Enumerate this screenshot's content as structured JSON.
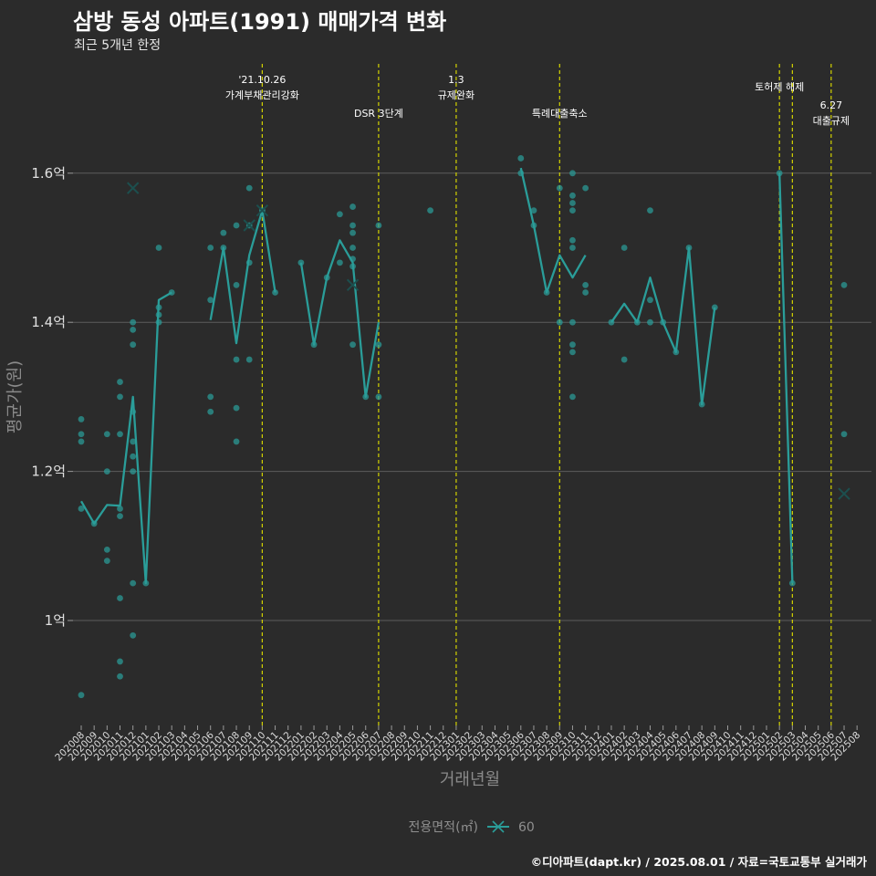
{
  "title": "삼방 동성 아파트(1991) 매매가격 변화",
  "subtitle": "최근 5개년 한정",
  "caption": "©디아파트(dapt.kr) / 2025.08.01 / 자료=국토교통부 실거래가",
  "colors": {
    "background": "#2b2b2b",
    "series": "#2a9d99",
    "event_line": "#d4d400",
    "grid": "#5c5c5c"
  },
  "chart_data": {
    "type": "line",
    "xlabel": "거래년월",
    "ylabel": "평균가(원)",
    "ylim": [
      0.865,
      1.745
    ],
    "y_unit": "억",
    "yticks": [
      {
        "value": 1.0,
        "label": "1억"
      },
      {
        "value": 1.2,
        "label": "1.2억"
      },
      {
        "value": 1.4,
        "label": "1.4억"
      },
      {
        "value": 1.6,
        "label": "1.6억"
      }
    ],
    "x_categories": [
      "202008",
      "202009",
      "202010",
      "202011",
      "202012",
      "202101",
      "202102",
      "202103",
      "202104",
      "202105",
      "202106",
      "202107",
      "202108",
      "202109",
      "202110",
      "202111",
      "202112",
      "202201",
      "202202",
      "202203",
      "202204",
      "202205",
      "202206",
      "202207",
      "202208",
      "202209",
      "202210",
      "202211",
      "202212",
      "202301",
      "202302",
      "202303",
      "202304",
      "202305",
      "202306",
      "202307",
      "202308",
      "202309",
      "202310",
      "202311",
      "202312",
      "202401",
      "202402",
      "202403",
      "202404",
      "202405",
      "202406",
      "202407",
      "202408",
      "202409",
      "202410",
      "202411",
      "202412",
      "202501",
      "202502",
      "202503",
      "202504",
      "202505",
      "202506",
      "202507",
      "202508"
    ],
    "legend": {
      "title": "전용면적(㎡)",
      "entries": [
        "60"
      ]
    },
    "series": [
      {
        "name": "60",
        "line_segments": [
          [
            [
              "202008",
              1.16
            ],
            [
              "202009",
              1.13
            ],
            [
              "202010",
              1.155
            ],
            [
              "202011",
              1.154
            ],
            [
              "202012",
              1.3
            ],
            [
              "202101",
              1.05
            ],
            [
              "202102",
              1.43
            ],
            [
              "202103",
              1.44
            ]
          ],
          [
            [
              "202106",
              1.403
            ],
            [
              "202107",
              1.5
            ],
            [
              "202108",
              1.372
            ],
            [
              "202109",
              1.49
            ],
            [
              "202110",
              1.55
            ],
            [
              "202111",
              1.44
            ]
          ],
          [
            [
              "202201",
              1.48
            ],
            [
              "202202",
              1.37
            ],
            [
              "202203",
              1.46
            ],
            [
              "202204",
              1.51
            ],
            [
              "202205",
              1.48
            ],
            [
              "202206",
              1.3
            ],
            [
              "202207",
              1.4
            ]
          ],
          [
            [
              "202306",
              1.607
            ],
            [
              "202307",
              1.53
            ],
            [
              "202308",
              1.44
            ],
            [
              "202309",
              1.49
            ],
            [
              "202310",
              1.46
            ],
            [
              "202311",
              1.49
            ]
          ],
          [
            [
              "202401",
              1.4
            ],
            [
              "202402",
              1.425
            ],
            [
              "202403",
              1.4
            ],
            [
              "202404",
              1.46
            ],
            [
              "202405",
              1.4
            ],
            [
              "202406",
              1.36
            ],
            [
              "202407",
              1.5
            ],
            [
              "202408",
              1.29
            ],
            [
              "202409",
              1.42
            ]
          ],
          [
            [
              "202502",
              1.6
            ],
            [
              "202503",
              1.05
            ]
          ]
        ],
        "points": [
          [
            "202008",
            1.27
          ],
          [
            "202008",
            1.25
          ],
          [
            "202008",
            1.24
          ],
          [
            "202008",
            1.15
          ],
          [
            "202008",
            0.9
          ],
          [
            "202009",
            1.13
          ],
          [
            "202010",
            1.25
          ],
          [
            "202010",
            1.2
          ],
          [
            "202010",
            1.095
          ],
          [
            "202010",
            1.08
          ],
          [
            "202011",
            1.32
          ],
          [
            "202011",
            1.3
          ],
          [
            "202011",
            1.25
          ],
          [
            "202011",
            1.15
          ],
          [
            "202011",
            1.14
          ],
          [
            "202011",
            1.03
          ],
          [
            "202011",
            0.945
          ],
          [
            "202011",
            0.925
          ],
          [
            "202012",
            1.4
          ],
          [
            "202012",
            1.39
          ],
          [
            "202012",
            1.37
          ],
          [
            "202012",
            1.28
          ],
          [
            "202012",
            1.24
          ],
          [
            "202012",
            1.22
          ],
          [
            "202012",
            1.2
          ],
          [
            "202012",
            1.05
          ],
          [
            "202012",
            0.98
          ],
          [
            "202101",
            1.05
          ],
          [
            "202102",
            1.5
          ],
          [
            "202102",
            1.42
          ],
          [
            "202102",
            1.41
          ],
          [
            "202102",
            1.4
          ],
          [
            "202103",
            1.44
          ],
          [
            "202106",
            1.5
          ],
          [
            "202106",
            1.43
          ],
          [
            "202106",
            1.3
          ],
          [
            "202106",
            1.28
          ],
          [
            "202107",
            1.52
          ],
          [
            "202107",
            1.5
          ],
          [
            "202108",
            1.53
          ],
          [
            "202108",
            1.45
          ],
          [
            "202108",
            1.35
          ],
          [
            "202108",
            1.285
          ],
          [
            "202108",
            1.24
          ],
          [
            "202109",
            1.58
          ],
          [
            "202109",
            1.53
          ],
          [
            "202109",
            1.48
          ],
          [
            "202109",
            1.35
          ],
          [
            "202110",
            1.55
          ],
          [
            "202111",
            1.44
          ],
          [
            "202201",
            1.48
          ],
          [
            "202202",
            1.37
          ],
          [
            "202203",
            1.46
          ],
          [
            "202204",
            1.545
          ],
          [
            "202204",
            1.48
          ],
          [
            "202205",
            1.555
          ],
          [
            "202205",
            1.53
          ],
          [
            "202205",
            1.52
          ],
          [
            "202205",
            1.5
          ],
          [
            "202205",
            1.485
          ],
          [
            "202205",
            1.475
          ],
          [
            "202205",
            1.37
          ],
          [
            "202206",
            1.3
          ],
          [
            "202207",
            1.53
          ],
          [
            "202207",
            1.37
          ],
          [
            "202207",
            1.3
          ],
          [
            "202211",
            1.55
          ],
          [
            "202306",
            1.62
          ],
          [
            "202306",
            1.6
          ],
          [
            "202307",
            1.55
          ],
          [
            "202307",
            1.53
          ],
          [
            "202308",
            1.44
          ],
          [
            "202309",
            1.58
          ],
          [
            "202309",
            1.4
          ],
          [
            "202310",
            1.6
          ],
          [
            "202310",
            1.57
          ],
          [
            "202310",
            1.56
          ],
          [
            "202310",
            1.55
          ],
          [
            "202310",
            1.51
          ],
          [
            "202310",
            1.5
          ],
          [
            "202310",
            1.4
          ],
          [
            "202310",
            1.37
          ],
          [
            "202310",
            1.36
          ],
          [
            "202310",
            1.3
          ],
          [
            "202311",
            1.58
          ],
          [
            "202311",
            1.45
          ],
          [
            "202311",
            1.44
          ],
          [
            "202401",
            1.4
          ],
          [
            "202402",
            1.5
          ],
          [
            "202402",
            1.35
          ],
          [
            "202403",
            1.4
          ],
          [
            "202404",
            1.55
          ],
          [
            "202404",
            1.43
          ],
          [
            "202404",
            1.4
          ],
          [
            "202405",
            1.4
          ],
          [
            "202406",
            1.36
          ],
          [
            "202407",
            1.5
          ],
          [
            "202408",
            1.29
          ],
          [
            "202409",
            1.42
          ],
          [
            "202502",
            1.6
          ],
          [
            "202503",
            1.05
          ],
          [
            "202507",
            1.45
          ],
          [
            "202507",
            1.25
          ]
        ],
        "x_markers": [
          [
            "202012",
            1.58
          ],
          [
            "202109",
            1.53
          ],
          [
            "202110",
            1.55
          ],
          [
            "202205",
            1.45
          ],
          [
            "202507",
            1.17
          ]
        ]
      }
    ],
    "events": [
      {
        "x": "202110",
        "lines": [
          "'21.10.26",
          "가계부채관리강화"
        ],
        "row": 0
      },
      {
        "x": "202207",
        "lines": [
          "DSR 3단계"
        ],
        "row": 2
      },
      {
        "x": "202301",
        "lines": [
          "1.3",
          "규제완화"
        ],
        "row": 0
      },
      {
        "x": "202309",
        "lines": [
          "특례대출축소"
        ],
        "row": 2
      },
      {
        "x": "202502",
        "lines": [
          "토허제 해제"
        ],
        "row": 1
      },
      {
        "x": "202503",
        "lines": [],
        "row": 1
      },
      {
        "x": "202506",
        "lines": [
          "6.27",
          "대출규제"
        ],
        "row": 3
      }
    ]
  }
}
